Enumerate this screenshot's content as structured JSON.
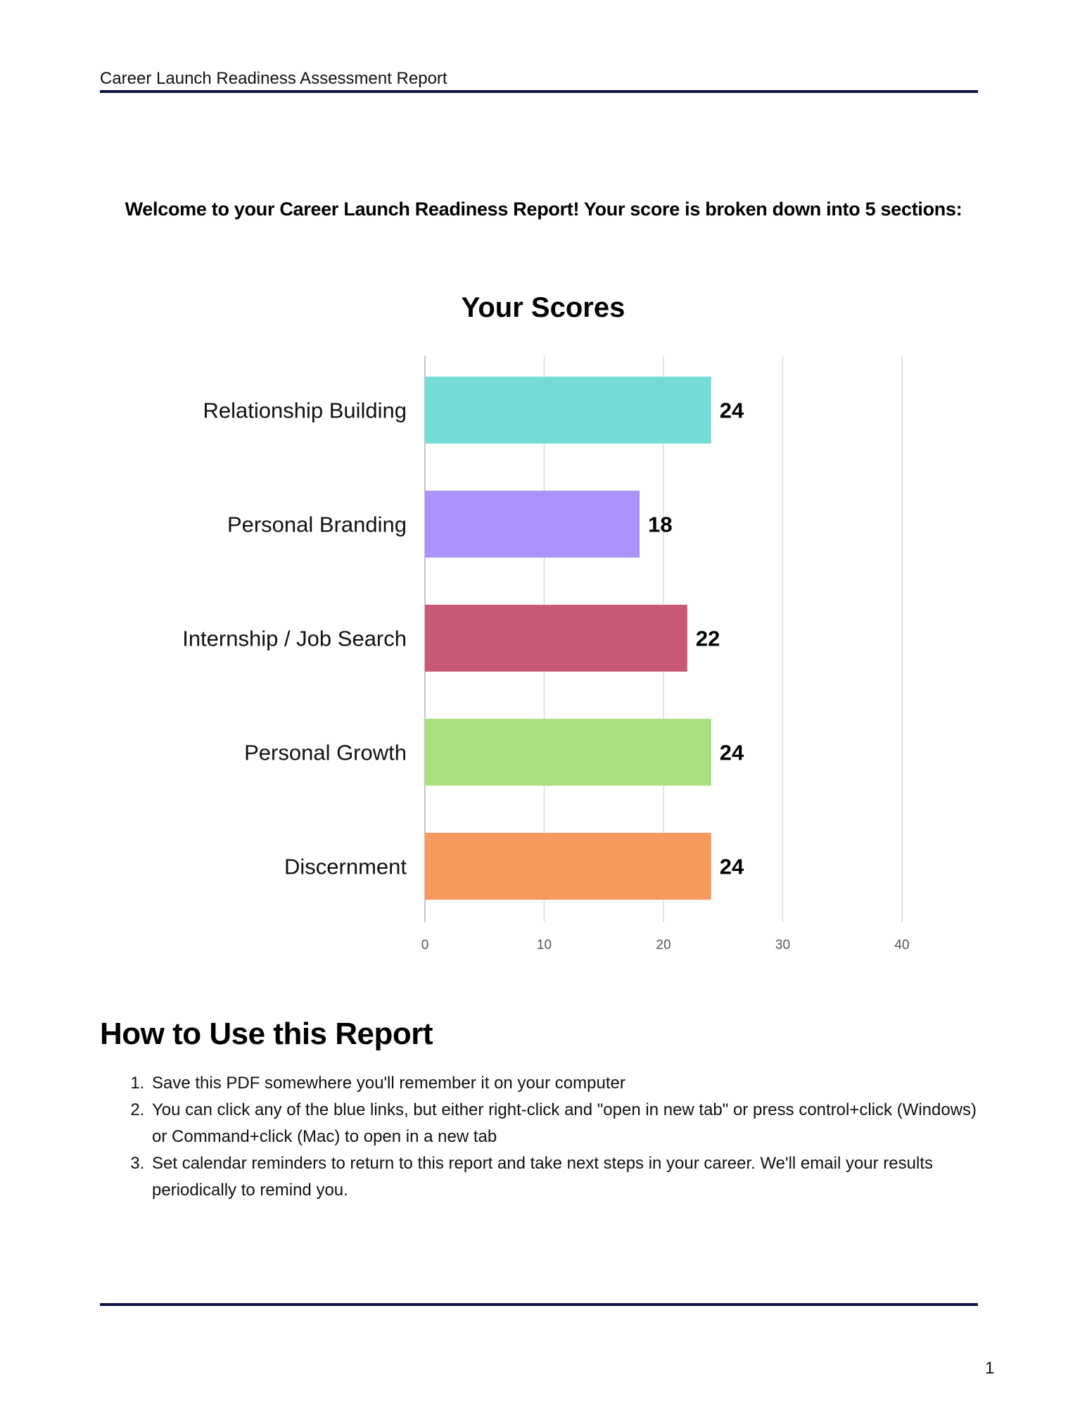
{
  "header": {
    "title": "Career Launch Readiness Assessment Report"
  },
  "intro": "Welcome to your Career Launch Readiness Report! Your score is broken down into 5 sections:",
  "chart_data": {
    "type": "bar",
    "orientation": "horizontal",
    "title": "Your Scores",
    "xlabel": "",
    "ylabel": "",
    "categories": [
      "Relationship Building",
      "Personal Branding",
      "Internship / Job Search",
      "Personal Growth",
      "Discernment"
    ],
    "values": [
      24,
      18,
      22,
      24,
      24
    ],
    "colors": [
      "#74DCD4",
      "#AA92F9",
      "#C95877",
      "#AAE07E",
      "#F7995C"
    ],
    "xlim": [
      0,
      40
    ],
    "ticks": [
      0,
      10,
      20,
      30,
      40
    ],
    "grid": true,
    "data_labels": true
  },
  "section": {
    "heading": "How to Use this Report",
    "steps": [
      "Save this PDF somewhere you'll remember it on your computer",
      "You can click any of the blue links, but either right-click and \"open in new tab\" or press control+click (Windows) or Command+click (Mac) to open in a new tab",
      "Set calendar reminders to return to this report and take next steps in your career. We'll email your results periodically to remind you."
    ]
  },
  "footer": {
    "page_number": "1"
  }
}
